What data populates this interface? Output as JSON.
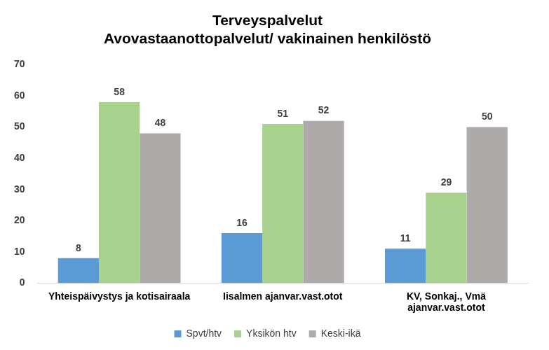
{
  "chart_data": {
    "type": "bar",
    "title": "Terveyspalvelut",
    "subtitle": "Avovastaanottopalvelut/ vakinainen henkilöstö",
    "categories": [
      "Yhteispäivystys ja kotisairaala",
      "Iisalmen ajanvar.vast.otot",
      "KV, Sonkaj., Vmä ajanvar.vast.otot"
    ],
    "series": [
      {
        "name": "Spvt/htv",
        "color": "#5b9bd5",
        "values": [
          8,
          16,
          11
        ]
      },
      {
        "name": "Yksikön htv",
        "color": "#a9d18e",
        "values": [
          58,
          51,
          29
        ]
      },
      {
        "name": "Keski-ikä",
        "color": "#aeaaaa",
        "values": [
          48,
          52,
          50
        ]
      }
    ],
    "ylim": [
      0,
      70
    ],
    "yticks": [
      0,
      10,
      20,
      30,
      40,
      50,
      60,
      70
    ],
    "grid": false,
    "legend": "bottom",
    "data_labels": true
  }
}
